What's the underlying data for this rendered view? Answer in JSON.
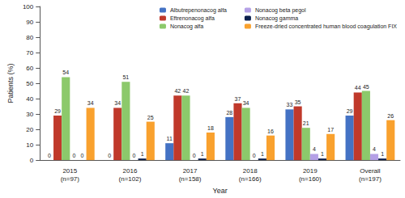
{
  "chart_data": {
    "type": "bar",
    "x_label": "Year",
    "y_label": "Patients (%)",
    "categories": [
      "2015\n(n=97)",
      "2016\n(n=102)",
      "2017\n(n=158)",
      "2018\n(n=166)",
      "2019\n(n=160)",
      "Overall\n(n=197)"
    ],
    "series": [
      {
        "name": "Albutrepenonacog alfa",
        "color": "#4472c4",
        "values": [
          0,
          0,
          11,
          28,
          33,
          29
        ]
      },
      {
        "name": "Eftrenonacog alfa",
        "color": "#c0392b",
        "values": [
          29,
          34,
          42,
          37,
          35,
          44
        ]
      },
      {
        "name": "Nonacog alfa",
        "color": "#8cc96b",
        "values": [
          54,
          51,
          42,
          34,
          21,
          45
        ]
      },
      {
        "name": "Nonacog beta pegol",
        "color": "#b4a0e6",
        "values": [
          0,
          0,
          0,
          0,
          4,
          4
        ]
      },
      {
        "name": "Nonacog gamma",
        "color": "#0b1f4d",
        "values": [
          0,
          1,
          1,
          1,
          1,
          1
        ]
      },
      {
        "name": "Freeze-dried concentrated human blood coagulation FIX",
        "color": "#f9a12e",
        "values": [
          34,
          25,
          18,
          16,
          17,
          26
        ]
      }
    ],
    "ylim": [
      0,
      100
    ],
    "yticks": [
      0,
      10,
      20,
      30,
      40,
      50,
      60,
      70,
      80,
      90,
      100
    ],
    "grid": false,
    "legend": "top-right",
    "data_labels": true
  }
}
